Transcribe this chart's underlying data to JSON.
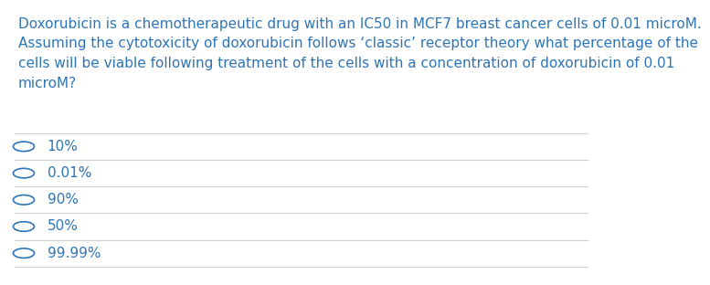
{
  "question_text": "Doxorubicin is a chemotherapeutic drug with an IC50 in MCF7 breast cancer cells of 0.01 microM.\nAssuming the cytotoxicity of doxorubicin follows ‘classic’ receptor theory what percentage of the\ncells will be viable following treatment of the cells with a concentration of doxorubicin of 0.01\nmicroM?",
  "options": [
    "10%",
    "0.01%",
    "90%",
    "50%",
    "99.99%"
  ],
  "text_color": "#2E75B6",
  "option_text_color": "#2E75B6",
  "bg_color": "#ffffff",
  "divider_color": "#d0d0d0",
  "circle_color": "#2E75B6",
  "font_size_question": 11,
  "font_size_option": 11
}
